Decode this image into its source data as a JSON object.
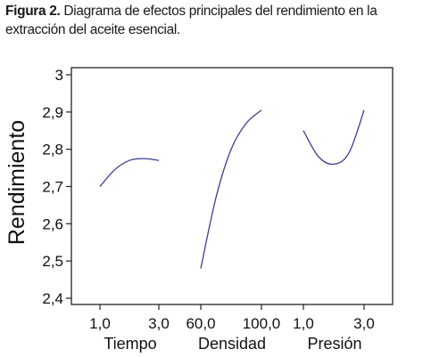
{
  "caption": {
    "label": "Figura 2.",
    "text": " Diagrama de efectos principales del rendimiento en la extracción del aceite esencial."
  },
  "chart_data": {
    "type": "line",
    "ylabel": "Rendimiento",
    "ylim": [
      2.4,
      3.0
    ],
    "yticks": [
      "2,4",
      "2,5",
      "2,6",
      "2,7",
      "2,8",
      "2,9",
      "3"
    ],
    "ytick_values": [
      2.4,
      2.5,
      2.6,
      2.7,
      2.8,
      2.9,
      3.0
    ],
    "grid": false,
    "line_color": "#3b3f8f",
    "panels": [
      {
        "factor": "Tiempo",
        "tick_labels": [
          "1,0",
          "3,0"
        ],
        "x": [
          1.0,
          1.5,
          2.0,
          2.5,
          3.0
        ],
        "y": [
          2.7,
          2.745,
          2.77,
          2.775,
          2.77
        ]
      },
      {
        "factor": "Densidad",
        "tick_labels": [
          "60,0",
          "100,0"
        ],
        "x": [
          60.0,
          70.0,
          80.0,
          90.0,
          100.0
        ],
        "y": [
          2.48,
          2.67,
          2.8,
          2.87,
          2.905
        ]
      },
      {
        "factor": "Presión",
        "tick_labels": [
          "1,0",
          "3,0"
        ],
        "x": [
          1.0,
          1.5,
          2.0,
          2.5,
          3.0
        ],
        "y": [
          2.85,
          2.78,
          2.76,
          2.79,
          2.905
        ]
      }
    ]
  }
}
